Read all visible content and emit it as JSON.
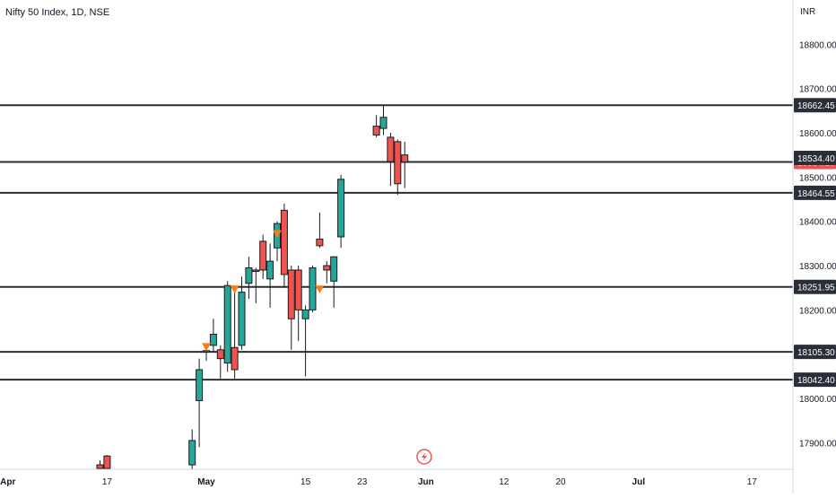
{
  "chart_title": "Nifty 50 Index, 1D, NSE",
  "currency": "INR",
  "colors": {
    "up": "#26a69a",
    "down": "#ef5350",
    "up_border": "#1b1b1b",
    "level_line": "#2a2e39",
    "label_bg": "#2a2e39",
    "current_label_bg": "#ef5350",
    "marker": "#f0801f",
    "flash_icon": "#ef5350",
    "axis_text": "#131722"
  },
  "chart_data": {
    "type": "candlestick",
    "title": "Nifty 50 Index, 1D, NSE",
    "ylim": [
      17840,
      18900
    ],
    "y_ticks": [
      17900,
      18000,
      18100,
      18200,
      18300,
      18400,
      18500,
      18600,
      18700,
      18800
    ],
    "y_tick_labels": [
      "17900.00",
      "18000.00",
      "18100.00",
      "18200.00",
      "18300.00",
      "18400.00",
      "18500.00",
      "18600.00",
      "18700.00",
      "18800.00"
    ],
    "x_ticks": [
      {
        "label": "Apr",
        "day": -28
      },
      {
        "label": "17",
        "day": -14
      },
      {
        "label": "May",
        "day": 0
      },
      {
        "label": "15",
        "day": 14
      },
      {
        "label": "23",
        "day": 22
      },
      {
        "label": "Jun",
        "day": 31
      },
      {
        "label": "12",
        "day": 42
      },
      {
        "label": "20",
        "day": 50
      },
      {
        "label": "Jul",
        "day": 61
      },
      {
        "label": "17",
        "day": 77
      }
    ],
    "levels": [
      {
        "value": 18662.45,
        "label": "18662.45"
      },
      {
        "value": 18534.1,
        "label": "18534.10",
        "current": true
      },
      {
        "value": 18464.55,
        "label": "18464.55"
      },
      {
        "value": 18251.95,
        "label": "18251.95"
      },
      {
        "value": 18105.3,
        "label": "18105.30"
      },
      {
        "value": 18042.4,
        "label": "18042.40"
      }
    ],
    "price_label": {
      "value": 18534.4,
      "label": "18534.40"
    },
    "candles": [
      {
        "day": -15,
        "open": 17850,
        "high": 17860,
        "low": 17840,
        "close": 17842
      },
      {
        "day": -14,
        "open": 17870,
        "high": 17872,
        "low": 17840,
        "close": 17842
      },
      {
        "day": -2,
        "open": 17850,
        "high": 17930,
        "low": 17840,
        "close": 17905
      },
      {
        "day": -1,
        "open": 17995,
        "high": 18090,
        "low": 17890,
        "close": 18065
      },
      {
        "day": 0,
        "open": 18105,
        "high": 18112,
        "low": 18085,
        "close": 18108
      },
      {
        "day": 1,
        "open": 18120,
        "high": 18180,
        "low": 18105,
        "close": 18145
      },
      {
        "day": 2,
        "open": 18110,
        "high": 18120,
        "low": 18045,
        "close": 18090
      },
      {
        "day": 3,
        "open": 18080,
        "high": 18265,
        "low": 18060,
        "close": 18255
      },
      {
        "day": 4,
        "open": 18115,
        "high": 18240,
        "low": 18045,
        "close": 18065
      },
      {
        "day": 5,
        "open": 18120,
        "high": 18275,
        "low": 18110,
        "close": 18240
      },
      {
        "day": 6,
        "open": 18260,
        "high": 18320,
        "low": 18225,
        "close": 18295
      },
      {
        "day": 7,
        "open": 18287,
        "high": 18295,
        "low": 18215,
        "close": 18290
      },
      {
        "day": 8,
        "open": 18355,
        "high": 18370,
        "low": 18270,
        "close": 18290
      },
      {
        "day": 9,
        "open": 18270,
        "high": 18350,
        "low": 18205,
        "close": 18310
      },
      {
        "day": 10,
        "open": 18340,
        "high": 18400,
        "low": 18310,
        "close": 18395
      },
      {
        "day": 11,
        "open": 18425,
        "high": 18440,
        "low": 18250,
        "close": 18280
      },
      {
        "day": 12,
        "open": 18290,
        "high": 18300,
        "low": 18110,
        "close": 18180
      },
      {
        "day": 13,
        "open": 18290,
        "high": 18300,
        "low": 18130,
        "close": 18200
      },
      {
        "day": 14,
        "open": 18180,
        "high": 18210,
        "low": 18050,
        "close": 18200
      },
      {
        "day": 15,
        "open": 18200,
        "high": 18300,
        "low": 18195,
        "close": 18295
      },
      {
        "day": 16,
        "open": 18360,
        "high": 18420,
        "low": 18340,
        "close": 18345
      },
      {
        "day": 17,
        "open": 18300,
        "high": 18310,
        "low": 18260,
        "close": 18290
      },
      {
        "day": 18,
        "open": 18265,
        "high": 18320,
        "low": 18205,
        "close": 18320
      },
      {
        "day": 19,
        "open": 18365,
        "high": 18505,
        "low": 18340,
        "close": 18495
      },
      {
        "day": 24,
        "open": 18615,
        "high": 18640,
        "low": 18590,
        "close": 18595
      },
      {
        "day": 25,
        "open": 18610,
        "high": 18662,
        "low": 18595,
        "close": 18635
      },
      {
        "day": 26,
        "open": 18590,
        "high": 18600,
        "low": 18480,
        "close": 18535
      },
      {
        "day": 27,
        "open": 18580,
        "high": 18585,
        "low": 18460,
        "close": 18485
      },
      {
        "day": 28,
        "open": 18550,
        "high": 18580,
        "low": 18475,
        "close": 18534
      }
    ],
    "markers": [
      {
        "day": 0,
        "value": 18115
      },
      {
        "day": 4,
        "value": 18245
      },
      {
        "day": 10,
        "value": 18370
      },
      {
        "day": 16,
        "value": 18245
      }
    ],
    "event_icon": {
      "day": 31
    }
  }
}
